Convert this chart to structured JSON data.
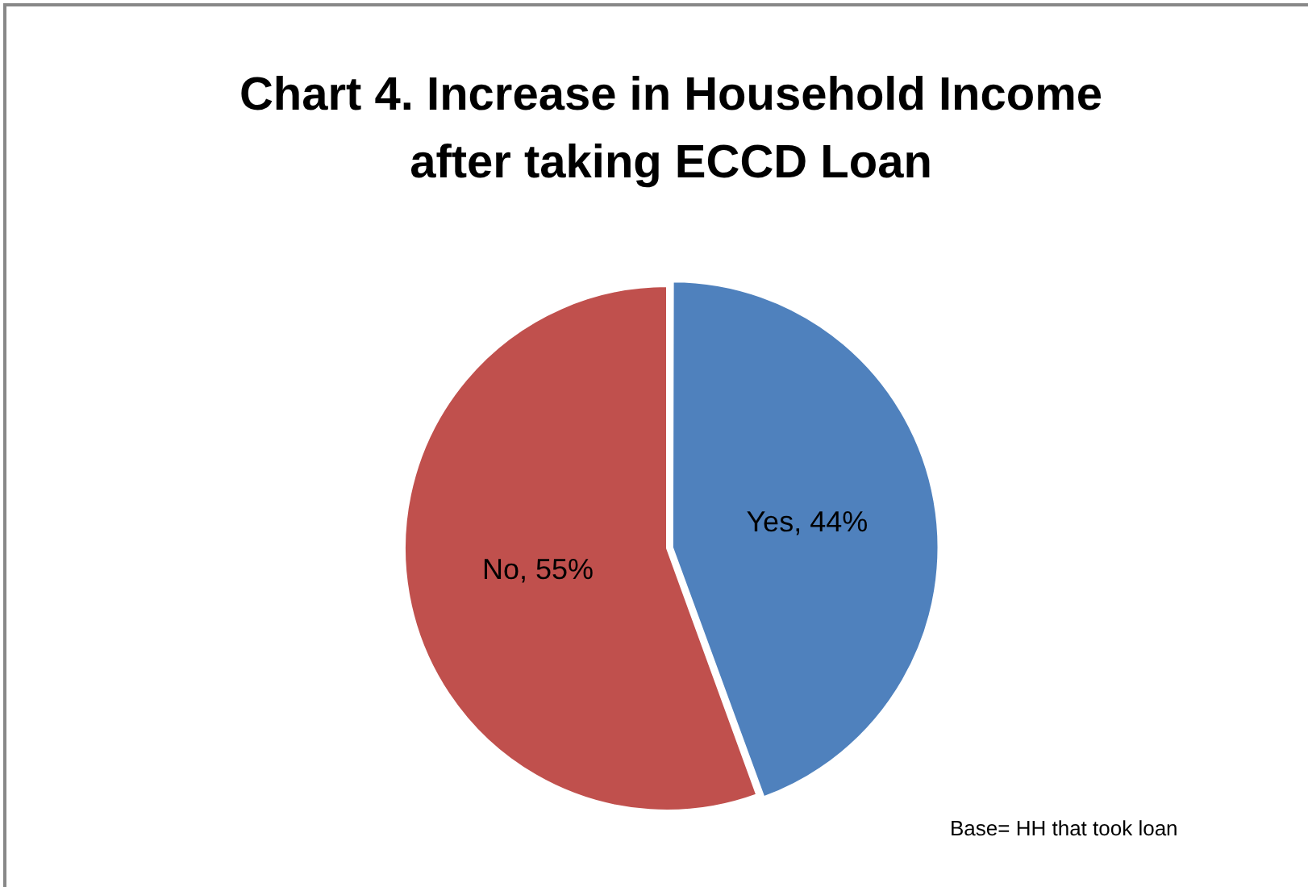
{
  "chart_data": {
    "type": "pie",
    "title": "Chart 4. Increase in Household Income after taking ECCD Loan",
    "categories": [
      "Yes",
      "No"
    ],
    "values": [
      44,
      55
    ],
    "colors": [
      "#4f81bd",
      "#c0504d"
    ],
    "value_labels": [
      "44%",
      "55%"
    ],
    "legend": false,
    "annotations": [
      "Base= HH that took loan"
    ]
  }
}
